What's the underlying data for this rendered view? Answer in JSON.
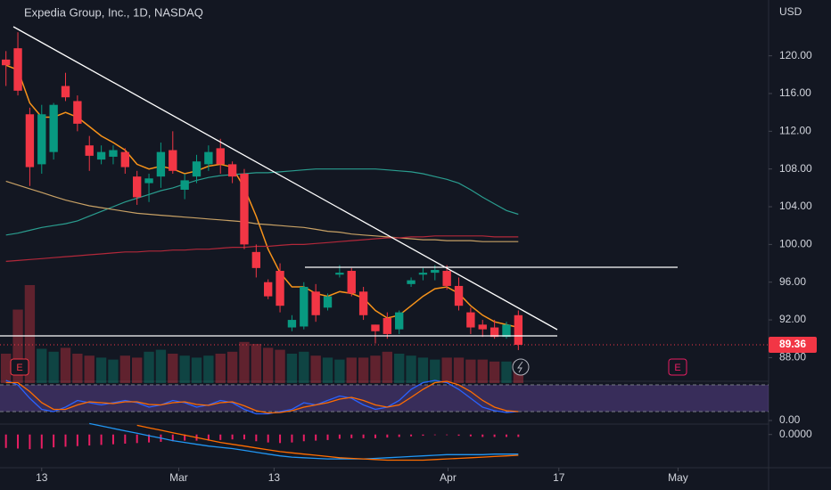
{
  "chart_data": {
    "type": "candlestick",
    "title": "Expedia Group, Inc., 1D, NASDAQ",
    "currency": "USD",
    "up_color": "#089981",
    "down_color": "#f23645",
    "ohlc": [
      [
        119.6,
        120.5,
        116.8,
        119.0
      ],
      [
        120.8,
        122.5,
        115.8,
        116.3
      ],
      [
        113.8,
        114.5,
        106.2,
        108.2
      ],
      [
        108.5,
        114.8,
        107.5,
        113.8
      ],
      [
        109.8,
        115.0,
        109.0,
        114.8
      ],
      [
        116.8,
        118.2,
        115.2,
        115.6
      ],
      [
        115.2,
        115.8,
        112.0,
        112.8
      ],
      [
        110.5,
        111.5,
        107.8,
        109.4
      ],
      [
        109.0,
        110.5,
        108.5,
        109.8
      ],
      [
        109.3,
        110.5,
        108.5,
        110.0
      ],
      [
        109.8,
        110.2,
        107.5,
        108.2
      ],
      [
        107.2,
        107.8,
        104.2,
        105.0
      ],
      [
        106.5,
        107.5,
        104.5,
        107.0
      ],
      [
        107.2,
        110.8,
        106.0,
        109.8
      ],
      [
        110.0,
        112.0,
        107.5,
        107.8
      ],
      [
        105.8,
        107.5,
        104.8,
        106.8
      ],
      [
        107.2,
        109.5,
        106.5,
        108.8
      ],
      [
        108.5,
        110.5,
        107.8,
        109.8
      ],
      [
        110.2,
        111.2,
        107.5,
        108.5
      ],
      [
        108.5,
        108.8,
        106.5,
        107.2
      ],
      [
        107.5,
        108.0,
        99.5,
        100.0
      ],
      [
        99.2,
        100.0,
        96.5,
        97.5
      ],
      [
        96.0,
        96.3,
        94.2,
        94.5
      ],
      [
        97.2,
        98.0,
        92.8,
        93.5
      ],
      [
        91.2,
        92.5,
        90.8,
        92.0
      ],
      [
        91.3,
        96.0,
        91.0,
        95.5
      ],
      [
        95.0,
        95.8,
        91.8,
        92.5
      ],
      [
        93.3,
        94.8,
        93.0,
        94.5
      ],
      [
        96.8,
        97.8,
        96.5,
        97.0
      ],
      [
        97.2,
        97.5,
        94.5,
        94.8
      ],
      [
        95.0,
        95.5,
        92.0,
        92.5
      ],
      [
        91.5,
        91.5,
        89.5,
        90.8
      ],
      [
        92.2,
        92.8,
        90.0,
        90.5
      ],
      [
        91.0,
        93.0,
        90.5,
        92.8
      ],
      [
        95.8,
        96.5,
        95.5,
        96.2
      ],
      [
        96.8,
        97.5,
        96.2,
        97.0
      ],
      [
        97.0,
        97.8,
        96.2,
        97.3
      ],
      [
        97.2,
        97.8,
        95.2,
        95.6
      ],
      [
        95.6,
        96.5,
        93.0,
        93.5
      ],
      [
        92.8,
        93.3,
        90.5,
        91.2
      ],
      [
        91.5,
        92.0,
        90.2,
        91.0
      ],
      [
        91.2,
        92.0,
        90.0,
        90.2
      ],
      [
        90.2,
        91.8,
        90.0,
        91.5
      ],
      [
        92.5,
        93.0,
        88.8,
        89.36
      ]
    ],
    "overlays": [
      {
        "color": "#f7931a",
        "values": [
          119,
          118.5,
          115,
          113.5,
          113.5,
          114,
          113.5,
          112.5,
          111.5,
          110.8,
          110,
          108.5,
          108,
          108.3,
          108,
          107.5,
          107.8,
          108.3,
          108.5,
          108.2,
          106,
          103,
          99.5,
          97,
          95.5,
          95.5,
          94.8,
          94.5,
          95,
          94.8,
          94.3,
          93,
          92.2,
          92.5,
          93.5,
          94.5,
          95.3,
          95.5,
          94.8,
          93.5,
          92.5,
          91.8,
          91.5,
          91.2
        ]
      },
      {
        "color": "#2a9d8f",
        "values": [
          101,
          101.2,
          101.5,
          101.8,
          102,
          102.2,
          102.5,
          103,
          103.5,
          104,
          104.5,
          104.9,
          105.3,
          105.7,
          106,
          106.4,
          106.8,
          107.1,
          107.3,
          107.4,
          107.5,
          107.6,
          107.6,
          107.7,
          107.8,
          107.9,
          108,
          108,
          108,
          108,
          108,
          108,
          107.9,
          107.8,
          107.7,
          107.5,
          107.2,
          106.9,
          106.5,
          105.8,
          105,
          104.3,
          103.6,
          103.2
        ]
      },
      {
        "color": "#c8a165",
        "values": [
          106.7,
          106.3,
          105.9,
          105.5,
          105.1,
          104.7,
          104.4,
          104.1,
          103.9,
          103.7,
          103.5,
          103.3,
          103.2,
          103.1,
          103,
          102.9,
          102.8,
          102.7,
          102.6,
          102.5,
          102.4,
          102.2,
          102.1,
          102,
          101.9,
          101.8,
          101.6,
          101.4,
          101.3,
          101.1,
          101,
          100.9,
          100.8,
          100.7,
          100.6,
          100.5,
          100.5,
          100.4,
          100.4,
          100.4,
          100.3,
          100.3,
          100.3,
          100.3
        ]
      },
      {
        "color": "#b2283a",
        "values": [
          98.2,
          98.3,
          98.4,
          98.5,
          98.6,
          98.7,
          98.8,
          98.9,
          99,
          99.1,
          99.2,
          99.2,
          99.3,
          99.3,
          99.4,
          99.4,
          99.5,
          99.5,
          99.6,
          99.7,
          99.7,
          99.8,
          99.8,
          99.9,
          100,
          100,
          100.1,
          100.2,
          100.3,
          100.4,
          100.5,
          100.6,
          100.7,
          100.7,
          100.8,
          100.8,
          100.9,
          100.9,
          100.9,
          100.9,
          100.9,
          100.8,
          100.8,
          100.8
        ]
      }
    ],
    "volume": [
      3.0,
      7.5,
      10.0,
      3.5,
      3.2,
      3.6,
      3.0,
      2.8,
      2.6,
      2.4,
      2.8,
      2.6,
      3.2,
      3.4,
      3.0,
      2.8,
      2.6,
      2.8,
      3.0,
      3.2,
      4.2,
      4.0,
      3.6,
      3.4,
      3.0,
      3.2,
      2.8,
      2.6,
      2.4,
      2.6,
      2.6,
      2.8,
      3.2,
      3.0,
      2.8,
      2.6,
      2.4,
      2.6,
      2.6,
      2.4,
      2.4,
      2.2,
      2.2,
      2.2
    ],
    "volume_lim": [
      0,
      10
    ],
    "ylim": [
      85.3,
      124.5
    ],
    "yticks": [
      {
        "value": 120,
        "label": "120.00"
      },
      {
        "value": 116,
        "label": "116.00"
      },
      {
        "value": 112,
        "label": "112.00"
      },
      {
        "value": 108,
        "label": "108.00"
      },
      {
        "value": 104,
        "label": "104.00"
      },
      {
        "value": 100,
        "label": "100.00"
      },
      {
        "value": 96,
        "label": "96.00"
      },
      {
        "value": 92,
        "label": "92.00"
      },
      {
        "value": 88,
        "label": "88.00"
      }
    ],
    "last_price": 89.36,
    "xlim": [
      -0.5,
      64
    ],
    "xticks": [
      {
        "value": 3,
        "label": "13"
      },
      {
        "value": 14.5,
        "label": "Mar"
      },
      {
        "value": 22.5,
        "label": "13"
      },
      {
        "value": 37.1,
        "label": "Apr"
      },
      {
        "value": 46.4,
        "label": "17"
      },
      {
        "value": 56.4,
        "label": "May"
      }
    ],
    "markers": [
      "E",
      "E"
    ],
    "stoch": {
      "ylim": [
        0,
        100
      ],
      "band": [
        20,
        80
      ],
      "yticks": [
        {
          "value": 0,
          "label": "0.00"
        }
      ],
      "k": [
        90,
        80,
        50,
        25,
        20,
        30,
        45,
        40,
        35,
        40,
        45,
        40,
        30,
        35,
        45,
        40,
        30,
        35,
        45,
        40,
        25,
        15,
        15,
        20,
        25,
        40,
        35,
        45,
        55,
        50,
        35,
        25,
        30,
        45,
        70,
        85,
        90,
        85,
        70,
        50,
        30,
        22,
        18,
        20
      ],
      "d": [
        85,
        85,
        65,
        40,
        25,
        25,
        35,
        42,
        40,
        38,
        42,
        42,
        36,
        35,
        40,
        42,
        36,
        34,
        40,
        42,
        33,
        22,
        17,
        18,
        22,
        30,
        35,
        40,
        48,
        52,
        45,
        35,
        30,
        35,
        52,
        70,
        85,
        88,
        80,
        65,
        45,
        30,
        22,
        20
      ]
    },
    "macd": {
      "ylim": [
        -5,
        2
      ],
      "yticks": [
        {
          "value": 0,
          "label": "0.0000"
        }
      ],
      "hist": [
        -2.2,
        -2.3,
        -2.4,
        -2.3,
        -2.1,
        -2,
        -1.9,
        -1.8,
        -1.7,
        -1.6,
        -1.5,
        -1.4,
        -1.3,
        -1.2,
        -1.1,
        -1,
        -1,
        -1,
        -0.9,
        -0.8,
        -0.8,
        -1.1,
        -1.3,
        -1.4,
        -1.3,
        -1.1,
        -1,
        -0.9,
        -0.7,
        -0.6,
        -0.6,
        -0.6,
        -0.5,
        -0.4,
        -0.3,
        -0.2,
        -0.1,
        -0.1,
        -0.2,
        -0.3,
        -0.4,
        -0.4,
        -0.4,
        -0.4
      ],
      "macd": [
        null,
        null,
        null,
        null,
        null,
        null,
        null,
        1.8,
        1.4,
        1.0,
        0.6,
        0.2,
        -0.2,
        -0.6,
        -1.0,
        -1.3,
        -1.6,
        -1.9,
        -2.1,
        -2.3,
        -2.6,
        -2.9,
        -3.2,
        -3.5,
        -3.7,
        -3.8,
        -3.9,
        -4.0,
        -4.0,
        -4.0,
        -4.0,
        -3.9,
        -3.8,
        -3.7,
        -3.6,
        -3.5,
        -3.4,
        -3.3,
        -3.3,
        -3.3,
        -3.3,
        -3.2,
        -3.2,
        -3.2
      ],
      "signal": [
        null,
        null,
        null,
        null,
        null,
        null,
        null,
        null,
        null,
        null,
        null,
        1.5,
        1.1,
        0.7,
        0.3,
        -0.1,
        -0.5,
        -0.9,
        -1.3,
        -1.6,
        -1.9,
        -2.2,
        -2.5,
        -2.8,
        -3.0,
        -3.2,
        -3.4,
        -3.6,
        -3.8,
        -3.9,
        -4.0,
        -4.1,
        -4.2,
        -4.2,
        -4.2,
        -4.2,
        -4.1,
        -4.0,
        -3.9,
        -3.8,
        -3.7,
        -3.6,
        -3.5,
        -3.4
      ]
    }
  }
}
